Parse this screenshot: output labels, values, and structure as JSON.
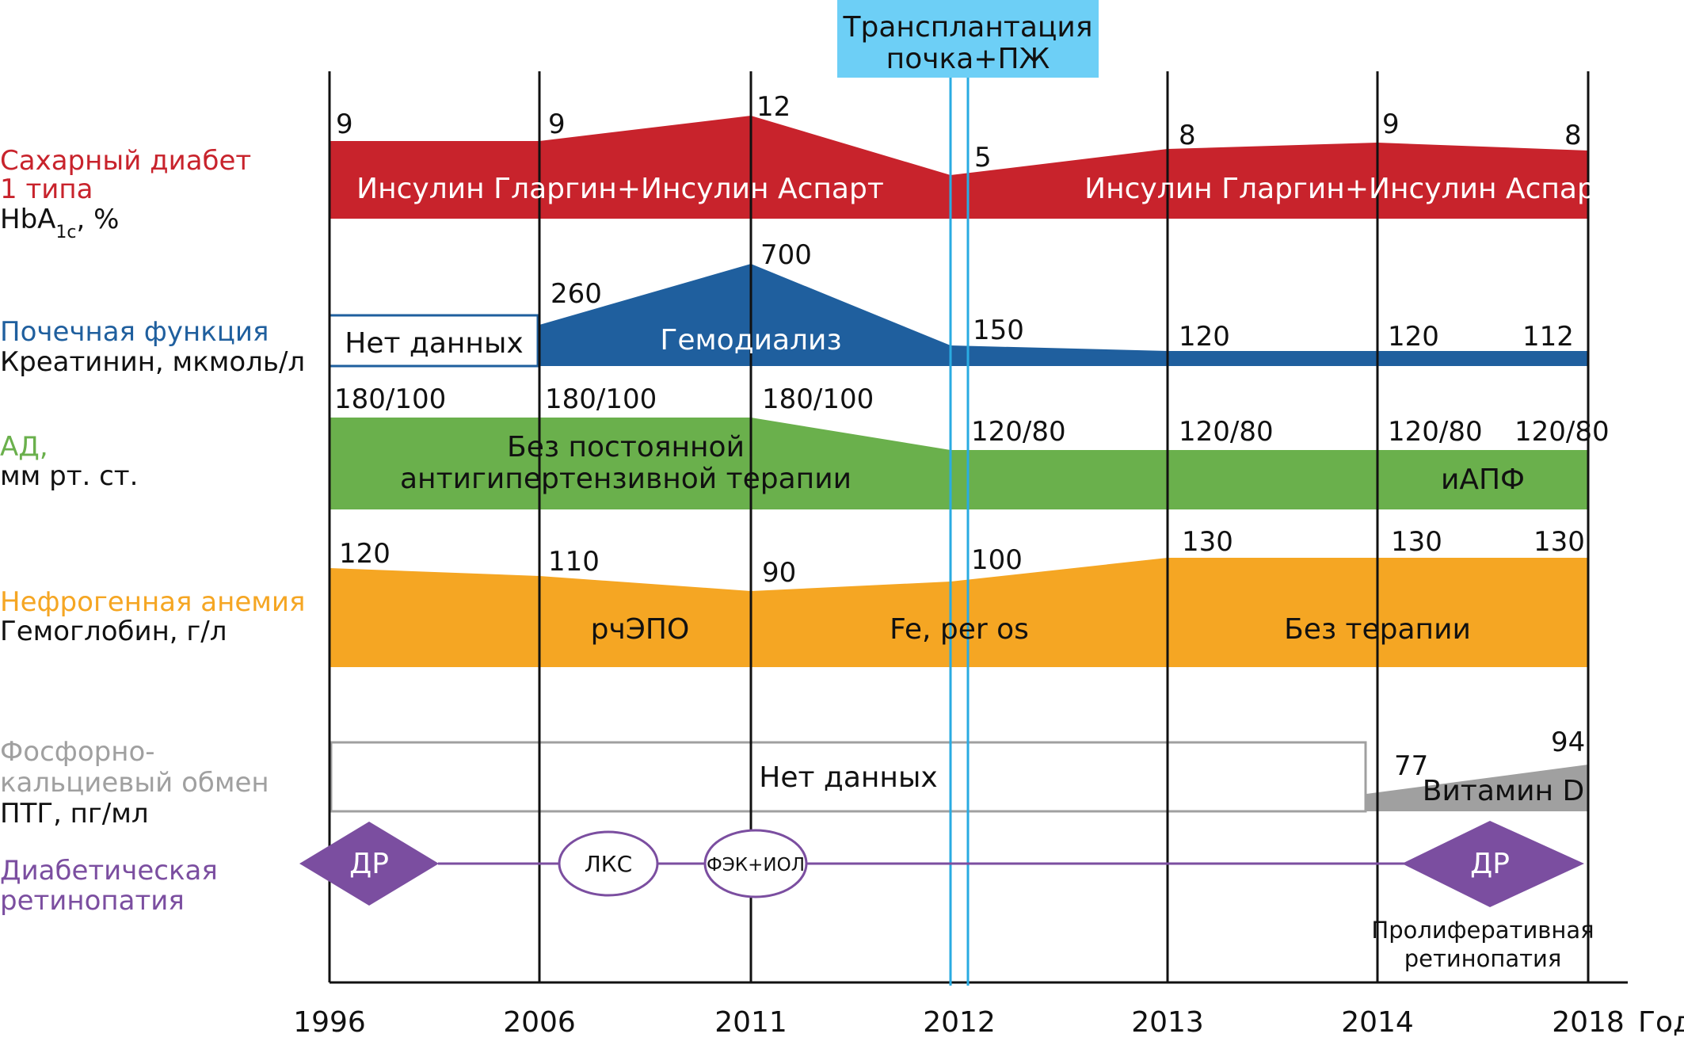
{
  "header": {
    "transplant_line1": "Трансплантация",
    "transplant_line2": "почка+ПЖ",
    "transplant_color": "#6dcff6"
  },
  "timeline": {
    "years": [
      "1996",
      "2006",
      "2011",
      "2012",
      "2013",
      "2014",
      "2018"
    ],
    "axis_unit": "Год"
  },
  "rows": {
    "diabetes": {
      "color": "#c8232c",
      "label_line1": "Сахарный диабет",
      "label_line2": "1 типа",
      "metric_main": "HbA",
      "metric_sub": "1c",
      "metric_suffix": ", %",
      "values": [
        "9",
        "9",
        "12",
        "5",
        "8",
        "9",
        "8"
      ],
      "therapy_left": "Инсулин Гларгин+Инсулин Аспарт",
      "therapy_right": "Инсулин Гларгин+Инсулин Аспарт"
    },
    "kidney": {
      "color": "#1f5f9e",
      "label_line1": "Почечная функция",
      "label_line2": "Креатинин, мкмоль/л",
      "no_data": "Нет данных",
      "values": [
        "260",
        "700",
        "150",
        "120",
        "120",
        "112"
      ],
      "therapy": "Гемодиализ"
    },
    "bp": {
      "color": "#6ab04c",
      "label_line1": "АД,",
      "label_line2": "мм рт. ст.",
      "values": [
        "180/100",
        "180/100",
        "180/100",
        "120/80",
        "120/80",
        "120/80",
        "120/80"
      ],
      "therapy_line1": "Без постоянной",
      "therapy_line2": "антигипертензивной терапии",
      "therapy_right": "иАПФ"
    },
    "anemia": {
      "color": "#f5a623",
      "label_line1": "Нефрогенная анемия",
      "label_line2": "Гемоглобин, г/л",
      "values": [
        "120",
        "110",
        "90",
        "100",
        "130",
        "130",
        "130"
      ],
      "therapy_1": "рчЭПО",
      "therapy_2": "Fe, per os",
      "therapy_3": "Без терапии"
    },
    "phosphate": {
      "color": "#a0a0a0",
      "label_line1": "Фосфорно-",
      "label_line2": "кальциевый обмен",
      "label_line3": "ПТГ, пг/мл",
      "no_data": "Нет данных",
      "values": [
        "77",
        "94"
      ],
      "therapy": "Витамин D"
    },
    "retinopathy": {
      "color": "#7b4ea0",
      "label_line1": "Диабетическая",
      "label_line2": "ретинопатия",
      "event_1": "ДР",
      "event_2": "ЛКС",
      "event_3": "ФЭК+ИОЛ",
      "event_4": "ДР",
      "note_line1": "Пролиферативная",
      "note_line2": "ретинопатия"
    }
  }
}
